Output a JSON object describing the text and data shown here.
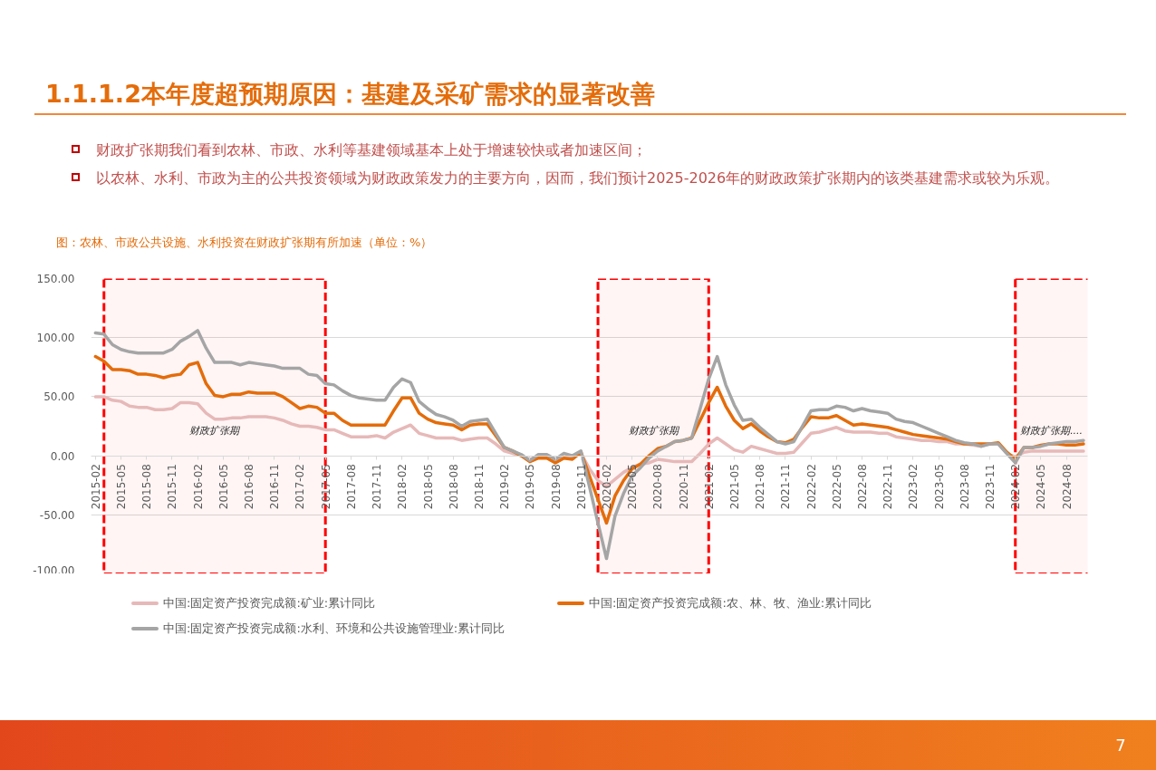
{
  "chart_data": {
    "type": "line",
    "title": "1.1.1.2本年度超预期原因：基建及采矿需求的显著改善",
    "subtitle": "图：农林、市政公共设施、水利投资在财政扩张期有所加速（单位：%）",
    "annotations": [
      "财政扩张期我们看到农林、市政、水利等基建领域基本上处于增速较快或者加速区间；",
      "以农林、水利、市政为主的公共投资领域为财政政策发力的主要方向，因而，我们预计2025-2026年的财政政策扩张期内的该类基建需求或较为乐观。",
      "7"
    ],
    "x": [
      "2015-02",
      "2015-03",
      "2015-04",
      "2015-05",
      "2015-06",
      "2015-07",
      "2015-08",
      "2015-09",
      "2015-10",
      "2015-11",
      "2015-12",
      "2016-01",
      "2016-02",
      "2016-03",
      "2016-04",
      "2016-05",
      "2016-06",
      "2016-07",
      "2016-08",
      "2016-09",
      "2016-10",
      "2016-11",
      "2016-12",
      "2017-01",
      "2017-02",
      "2017-03",
      "2017-04",
      "2017-05",
      "2017-06",
      "2017-07",
      "2017-08",
      "2017-09",
      "2017-10",
      "2017-11",
      "2017-12",
      "2018-01",
      "2018-02",
      "2018-03",
      "2018-04",
      "2018-05",
      "2018-06",
      "2018-07",
      "2018-08",
      "2018-09",
      "2018-10",
      "2018-11",
      "2018-12",
      "2019-01",
      "2019-02",
      "2019-03",
      "2019-04",
      "2019-05",
      "2019-06",
      "2019-07",
      "2019-08",
      "2019-09",
      "2019-10",
      "2019-11",
      "2019-12",
      "2020-01",
      "2020-02",
      "2020-03",
      "2020-04",
      "2020-05",
      "2020-06",
      "2020-07",
      "2020-08",
      "2020-09",
      "2020-10",
      "2020-11",
      "2020-12",
      "2021-01",
      "2021-02",
      "2021-03",
      "2021-04",
      "2021-05",
      "2021-06",
      "2021-07",
      "2021-08",
      "2021-09",
      "2021-10",
      "2021-11",
      "2021-12",
      "2022-01",
      "2022-02",
      "2022-03",
      "2022-04",
      "2022-05",
      "2022-06",
      "2022-07",
      "2022-08",
      "2022-09",
      "2022-10",
      "2022-11",
      "2022-12",
      "2023-01",
      "2023-02",
      "2023-03",
      "2023-04",
      "2023-05",
      "2023-06",
      "2023-07",
      "2023-08",
      "2023-09",
      "2023-10",
      "2023-11",
      "2023-12",
      "2024-01",
      "2024-02",
      "2024-03",
      "2024-04",
      "2024-05",
      "2024-06",
      "2024-07",
      "2024-08",
      "2024-09",
      "2024-10"
    ],
    "xlim": [
      "2015-01-16",
      "2024-10-16"
    ],
    "xticks": [
      "2015-02",
      "2015-05",
      "2015-08",
      "2015-11",
      "2016-02",
      "2016-05",
      "2016-08",
      "2016-11",
      "2017-02",
      "2017-05",
      "2017-08",
      "2017-11",
      "2018-02",
      "2018-05",
      "2018-08",
      "2018-11",
      "2019-02",
      "2019-05",
      "2019-08",
      "2019-11",
      "2020-02",
      "2020-05",
      "2020-08",
      "2020-11",
      "2021-02",
      "2021-05",
      "2021-08",
      "2021-11",
      "2022-02",
      "2022-05",
      "2022-08",
      "2022-11",
      "2023-02",
      "2023-05",
      "2023-08",
      "2023-11",
      "2024-02",
      "2024-05",
      "2024-08"
    ],
    "ylim": [
      -100,
      150
    ],
    "yticks": [
      {
        "value": -100,
        "label": "-100.00"
      },
      {
        "value": -50,
        "label": "-50.00"
      },
      {
        "value": 0,
        "label": "0.00"
      },
      {
        "value": 50,
        "label": "50.00"
      },
      {
        "value": 100,
        "label": "100.00"
      },
      {
        "value": 150,
        "label": "150.00"
      }
    ],
    "grid": "y",
    "legend": "bottom",
    "series": [
      {
        "name": "中国:固定资产投资完成额:矿业:累计同比",
        "color": "#e6b9b8",
        "values": [
          50,
          50,
          47,
          46,
          42,
          41,
          41,
          39,
          39,
          40,
          45,
          45,
          44,
          36,
          31,
          31,
          32,
          32,
          33,
          33,
          33,
          32,
          30,
          27,
          25,
          25,
          24,
          22,
          22,
          19,
          16,
          16,
          16,
          17,
          15,
          20,
          23,
          26,
          19,
          17,
          15,
          15,
          15,
          13,
          14,
          15,
          15,
          10,
          4,
          2,
          0,
          -3,
          -1,
          -1,
          -3,
          -1,
          -1,
          2,
          -11,
          -21,
          -26,
          -20,
          -14,
          -10,
          -7,
          -6,
          -3,
          -4,
          -5,
          -5,
          -5,
          2,
          10,
          15,
          10,
          5,
          3,
          8,
          6,
          4,
          2,
          2,
          3,
          11,
          19,
          20,
          22,
          24,
          21,
          20,
          20,
          20,
          19,
          19,
          16,
          15,
          14,
          13,
          13,
          12,
          12,
          10,
          10,
          9,
          8,
          10,
          10,
          2,
          -1,
          3,
          4,
          4,
          4,
          4,
          4,
          4,
          4
        ]
      },
      {
        "name": "中国:固定资产投资完成额:农、林、牧、渔业:累计同比",
        "color": "#e46c0a",
        "values": [
          84,
          80,
          73,
          73,
          72,
          69,
          69,
          68,
          66,
          68,
          69,
          77,
          79,
          61,
          51,
          50,
          52,
          52,
          54,
          53,
          53,
          53,
          50,
          45,
          40,
          42,
          41,
          36,
          36,
          30,
          26,
          26,
          26,
          26,
          26,
          38,
          49,
          49,
          36,
          31,
          28,
          27,
          26,
          22,
          26,
          27,
          27,
          17,
          7,
          4,
          0,
          -5,
          -2,
          -2,
          -6,
          -2,
          -3,
          3,
          -17,
          -37,
          -57,
          -34,
          -21,
          -11,
          -7,
          0,
          6,
          8,
          12,
          13,
          15,
          30,
          45,
          58,
          42,
          30,
          23,
          27,
          21,
          16,
          12,
          11,
          14,
          24,
          33,
          32,
          32,
          34,
          30,
          26,
          27,
          26,
          25,
          24,
          22,
          20,
          18,
          17,
          16,
          15,
          14,
          12,
          10,
          10,
          10,
          10,
          11,
          3,
          -3,
          7,
          7,
          9,
          10,
          10,
          9,
          9,
          10
        ]
      },
      {
        "name": "中国:固定资产投资完成额:水利、环境和公共设施管理业:累计同比",
        "color": "#a5a5a5",
        "values": [
          104,
          103,
          94,
          90,
          88,
          87,
          87,
          87,
          87,
          90,
          97,
          101,
          106,
          91,
          79,
          79,
          79,
          77,
          79,
          78,
          77,
          76,
          74,
          74,
          74,
          69,
          68,
          61,
          60,
          55,
          51,
          49,
          48,
          47,
          47,
          58,
          65,
          62,
          46,
          40,
          35,
          33,
          30,
          25,
          29,
          30,
          31,
          19,
          7,
          4,
          1,
          -4,
          1,
          1,
          -3,
          2,
          0,
          4,
          -26,
          -57,
          -87,
          -51,
          -32,
          -17,
          -10,
          -2,
          4,
          8,
          12,
          13,
          15,
          40,
          65,
          84,
          60,
          43,
          30,
          31,
          24,
          18,
          12,
          10,
          12,
          25,
          38,
          39,
          39,
          42,
          41,
          38,
          40,
          38,
          37,
          36,
          31,
          29,
          28,
          25,
          22,
          19,
          16,
          13,
          11,
          10,
          8,
          10,
          10,
          2,
          -6,
          7,
          7,
          8,
          10,
          11,
          12,
          12,
          13
        ]
      }
    ],
    "bands": [
      {
        "axis": "x",
        "from": "2015-03",
        "to": "2017-05",
        "label": "财政扩张期",
        "color": "#ff0000"
      },
      {
        "axis": "x",
        "from": "2020-01",
        "to": "2021-02",
        "label": "财政扩张期",
        "color": "#ff0000"
      },
      {
        "axis": "x",
        "from": "2024-02",
        "to": "2025-07",
        "label": "财政扩张期....",
        "color": "#ff0000"
      }
    ]
  }
}
